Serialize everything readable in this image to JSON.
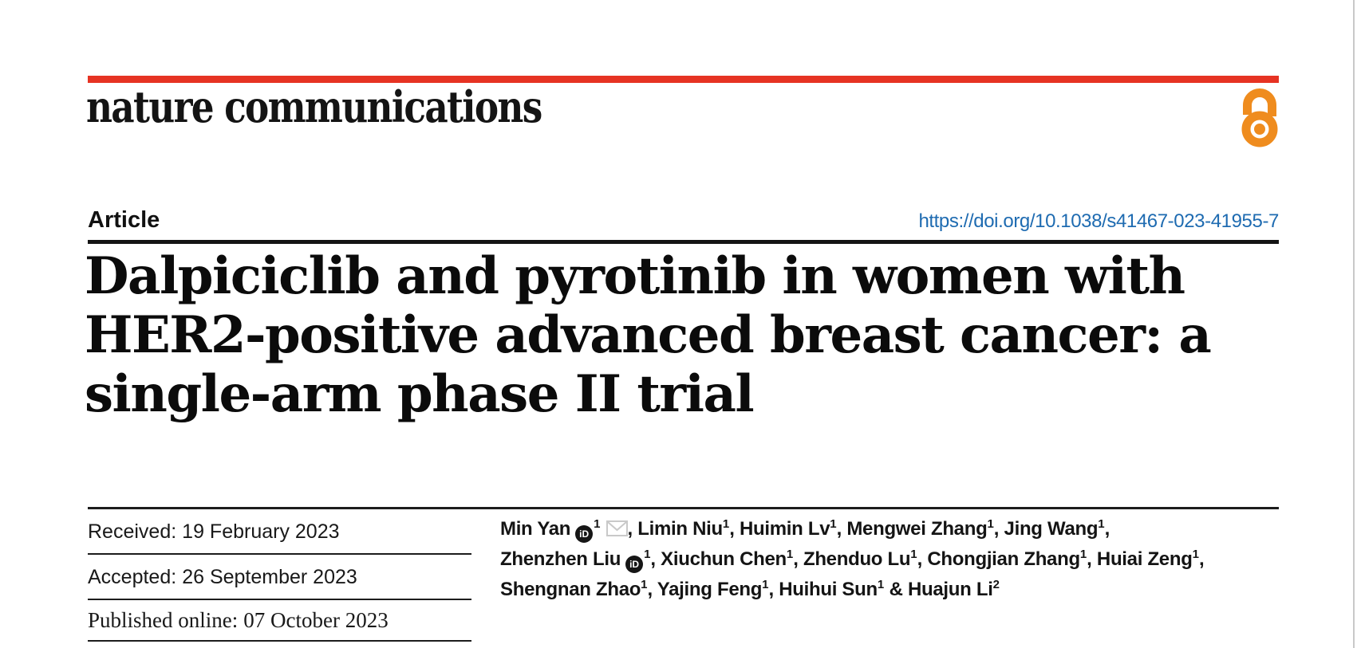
{
  "brand": {
    "journal_name": "nature communications",
    "red_bar_color": "#e63323",
    "open_access_color": "#ef8c1e",
    "open_access_icon": "open-access-padlock"
  },
  "header": {
    "article_type": "Article",
    "doi": "https://doi.org/10.1038/s41467-023-41955-7",
    "doi_color": "#1e6bb1",
    "title_lines": [
      "Dalpiciclib and pyrotinib in women with",
      "HER2-positive advanced breast cancer: a",
      "single-arm phase II trial"
    ]
  },
  "dates": [
    {
      "label": "Received:",
      "value": "19 February 2023"
    },
    {
      "label": "Accepted:",
      "value": "26 September 2023"
    },
    {
      "label": "Published online:",
      "value": "07 October 2023"
    }
  ],
  "authors": {
    "lines": [
      [
        {
          "t": "Min Yan"
        },
        {
          "i": "orcid"
        },
        {
          "s": "1"
        },
        {
          "i": "envelope"
        },
        {
          "t": ", Limin Niu"
        },
        {
          "s": "1"
        },
        {
          "t": ", Huimin Lv"
        },
        {
          "s": "1"
        },
        {
          "t": ", Mengwei Zhang"
        },
        {
          "s": "1"
        },
        {
          "t": ", Jing Wang"
        },
        {
          "s": "1"
        },
        {
          "t": ","
        }
      ],
      [
        {
          "t": "Zhenzhen Liu"
        },
        {
          "i": "orcid"
        },
        {
          "s": "1"
        },
        {
          "t": ", Xiuchun Chen"
        },
        {
          "s": "1"
        },
        {
          "t": ", Zhenduo Lu"
        },
        {
          "s": "1"
        },
        {
          "t": ", Chongjian Zhang"
        },
        {
          "s": "1"
        },
        {
          "t": ", Huiai Zeng"
        },
        {
          "s": "1"
        },
        {
          "t": ","
        }
      ],
      [
        {
          "t": "Shengnan Zhao"
        },
        {
          "s": "1"
        },
        {
          "t": ", Yajing Feng"
        },
        {
          "s": "1"
        },
        {
          "t": ", Huihui Sun"
        },
        {
          "s": "1"
        },
        {
          "t": " & Huajun Li"
        },
        {
          "s": "2"
        }
      ]
    ]
  },
  "icons": {
    "orcid_glyph": "iD",
    "envelope_color": "#c9c9c9"
  }
}
